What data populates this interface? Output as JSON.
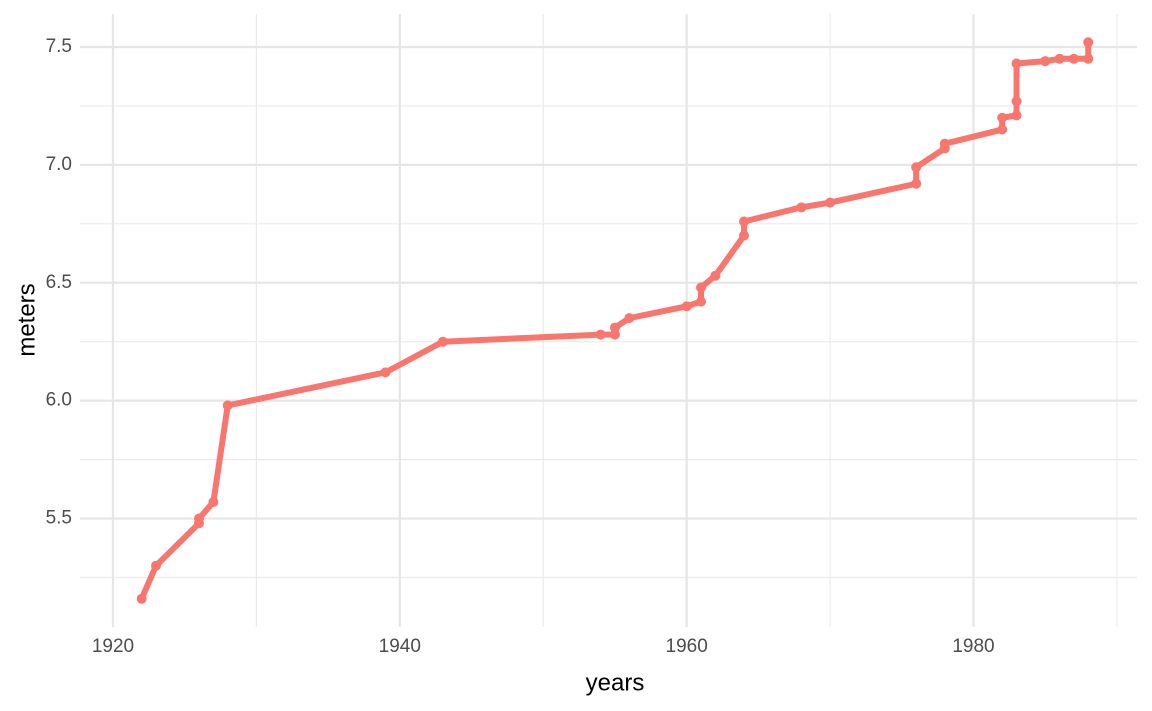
{
  "chart_data": {
    "type": "line",
    "x_label": "years",
    "y_label": "meters",
    "xlim": [
      1917.7,
      1991.4
    ],
    "xticks": [
      1920,
      1940,
      1960,
      1980
    ],
    "xminor": [
      1930,
      1950,
      1970,
      1990
    ],
    "ylim": [
      5.04,
      7.64
    ],
    "yticks": [
      5.5,
      {
        "value": 6,
        "label": "6.0"
      },
      6.5,
      {
        "value": 7,
        "label": "7.0"
      },
      7.5
    ],
    "yminor": [
      5.25,
      5.75,
      6.25,
      6.75,
      7.25
    ],
    "grid": true,
    "series": [
      {
        "color": "#f8766d",
        "x": [
          1922,
          1923,
          1926,
          1926,
          1927,
          1928,
          1939,
          1943,
          1954,
          1955,
          1955,
          1956,
          1960,
          1961,
          1961,
          1962,
          1964,
          1964,
          1968,
          1970,
          1976,
          1976,
          1978,
          1978,
          1982,
          1982,
          1983,
          1983,
          1983,
          1985,
          1986,
          1987,
          1988,
          1988
        ],
        "values": [
          5.16,
          5.3,
          5.48,
          5.5,
          5.57,
          5.98,
          6.12,
          6.25,
          6.28,
          6.28,
          6.31,
          6.35,
          6.4,
          6.42,
          6.48,
          6.53,
          6.7,
          6.76,
          6.82,
          6.84,
          6.92,
          6.99,
          7.07,
          7.09,
          7.15,
          7.2,
          7.21,
          7.27,
          7.43,
          7.44,
          7.45,
          7.45,
          7.45,
          7.52
        ]
      }
    ]
  }
}
